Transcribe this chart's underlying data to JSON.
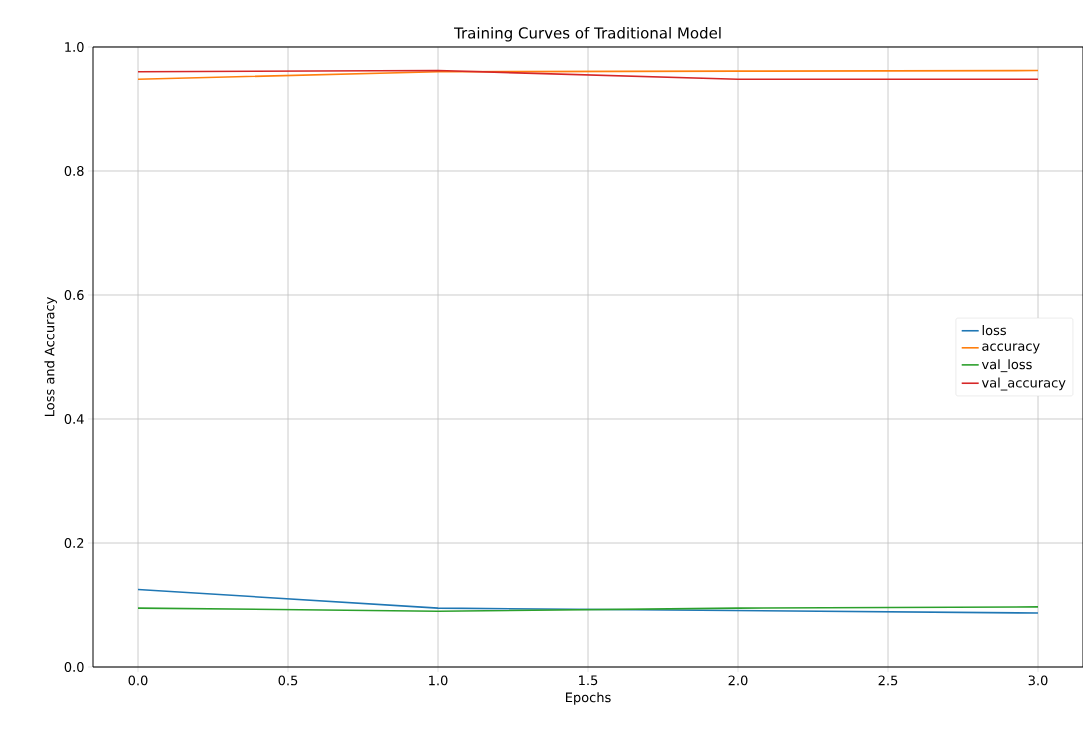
{
  "chart_data": {
    "type": "line",
    "title": "Training Curves of Traditional Model",
    "xlabel": "Epochs",
    "ylabel": "Loss and Accuracy",
    "x": [
      0,
      1,
      2,
      3
    ],
    "series": [
      {
        "name": "loss",
        "color": "#1f77b4",
        "values": [
          0.125,
          0.095,
          0.091,
          0.087
        ]
      },
      {
        "name": "accuracy",
        "color": "#ff7f0e",
        "values": [
          0.948,
          0.96,
          0.961,
          0.962
        ]
      },
      {
        "name": "val_loss",
        "color": "#2ca02c",
        "values": [
          0.095,
          0.09,
          0.095,
          0.097
        ]
      },
      {
        "name": "val_accuracy",
        "color": "#d62728",
        "values": [
          0.96,
          0.962,
          0.948,
          0.948
        ]
      }
    ],
    "xlim": [
      -0.15,
      3.15
    ],
    "ylim": [
      0,
      1
    ],
    "xticks": [
      {
        "value": 0,
        "label": "0.0"
      },
      {
        "value": 0.5,
        "label": "0.5"
      },
      {
        "value": 1,
        "label": "1.0"
      },
      {
        "value": 1.5,
        "label": "1.5"
      },
      {
        "value": 2,
        "label": "2.0"
      },
      {
        "value": 2.5,
        "label": "2.5"
      },
      {
        "value": 3,
        "label": "3.0"
      }
    ],
    "yticks": [
      {
        "value": 0,
        "label": "0.0"
      },
      {
        "value": 0.2,
        "label": "0.2"
      },
      {
        "value": 0.4,
        "label": "0.4"
      },
      {
        "value": 0.6,
        "label": "0.6"
      },
      {
        "value": 0.8,
        "label": "0.8"
      },
      {
        "value": 1,
        "label": "1.0"
      }
    ],
    "grid": true,
    "legend": "right",
    "line_style": "solid",
    "marker": "none"
  }
}
